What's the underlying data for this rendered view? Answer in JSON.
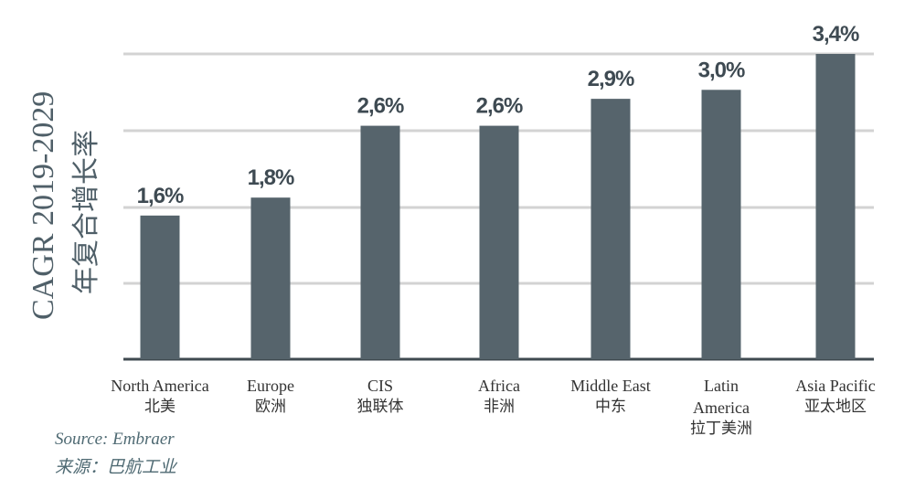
{
  "chart_data": {
    "type": "bar",
    "ylabel": "CAGR 2019-2029",
    "ylabel_zh": "年复合增长率",
    "categories": [
      {
        "en": [
          "North America"
        ],
        "zh": "北美"
      },
      {
        "en": [
          "Europe"
        ],
        "zh": "欧洲"
      },
      {
        "en": [
          "CIS"
        ],
        "zh": "独联体"
      },
      {
        "en": [
          "Africa"
        ],
        "zh": "非洲"
      },
      {
        "en": [
          "Middle East"
        ],
        "zh": "中东"
      },
      {
        "en": [
          "Latin",
          "America"
        ],
        "zh": "拉丁美洲"
      },
      {
        "en": [
          "Asia Pacific"
        ],
        "zh": "亚太地区"
      }
    ],
    "values": [
      1.6,
      1.8,
      2.6,
      2.6,
      2.9,
      3.0,
      3.4
    ],
    "value_labels": [
      "1,6%",
      "1,8%",
      "2,6%",
      "2,6%",
      "2,9%",
      "3,0%",
      "3,4%"
    ],
    "ylim": [
      0,
      4
    ],
    "grid": true,
    "bar_color": "#56646c",
    "grid_color": "#d3d3d3"
  },
  "source": {
    "en": "Source: Embraer",
    "zh": "来源：巴航工业"
  }
}
